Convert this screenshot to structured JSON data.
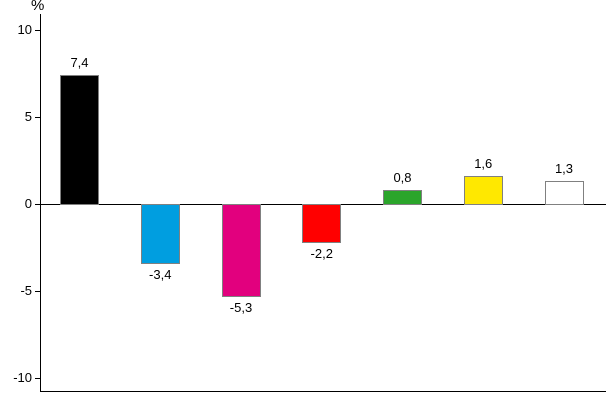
{
  "chart": {
    "unit_label": "%",
    "background_color": "#ffffff",
    "axis_color": "#000000",
    "bar_border_color": "#808080"
  },
  "chart_data": {
    "type": "bar",
    "title": "",
    "xlabel": "",
    "ylabel": "%",
    "ylim": [
      -10.9,
      10.9
    ],
    "grid": false,
    "legend": false,
    "decimal_separator": ",",
    "categories": [
      "",
      "",
      "",
      "",
      "",
      "",
      ""
    ],
    "values": [
      7.4,
      -3.4,
      -5.3,
      -2.2,
      0.8,
      1.6,
      1.3
    ],
    "value_labels": [
      "7,4",
      "-3,4",
      "-5,3",
      "-2,2",
      "0,8",
      "1,6",
      "1,3"
    ],
    "bar_colors": [
      "#000000",
      "#009EE0",
      "#E2007E",
      "#FF0000",
      "#2BA52B",
      "#FFE800",
      "#FFFFFF"
    ],
    "yticks": [
      {
        "value": 10,
        "label": "10"
      },
      {
        "value": 5,
        "label": "5"
      },
      {
        "value": 0,
        "label": "0"
      },
      {
        "value": -5,
        "label": "-5"
      },
      {
        "value": -10,
        "label": "-10"
      }
    ]
  }
}
